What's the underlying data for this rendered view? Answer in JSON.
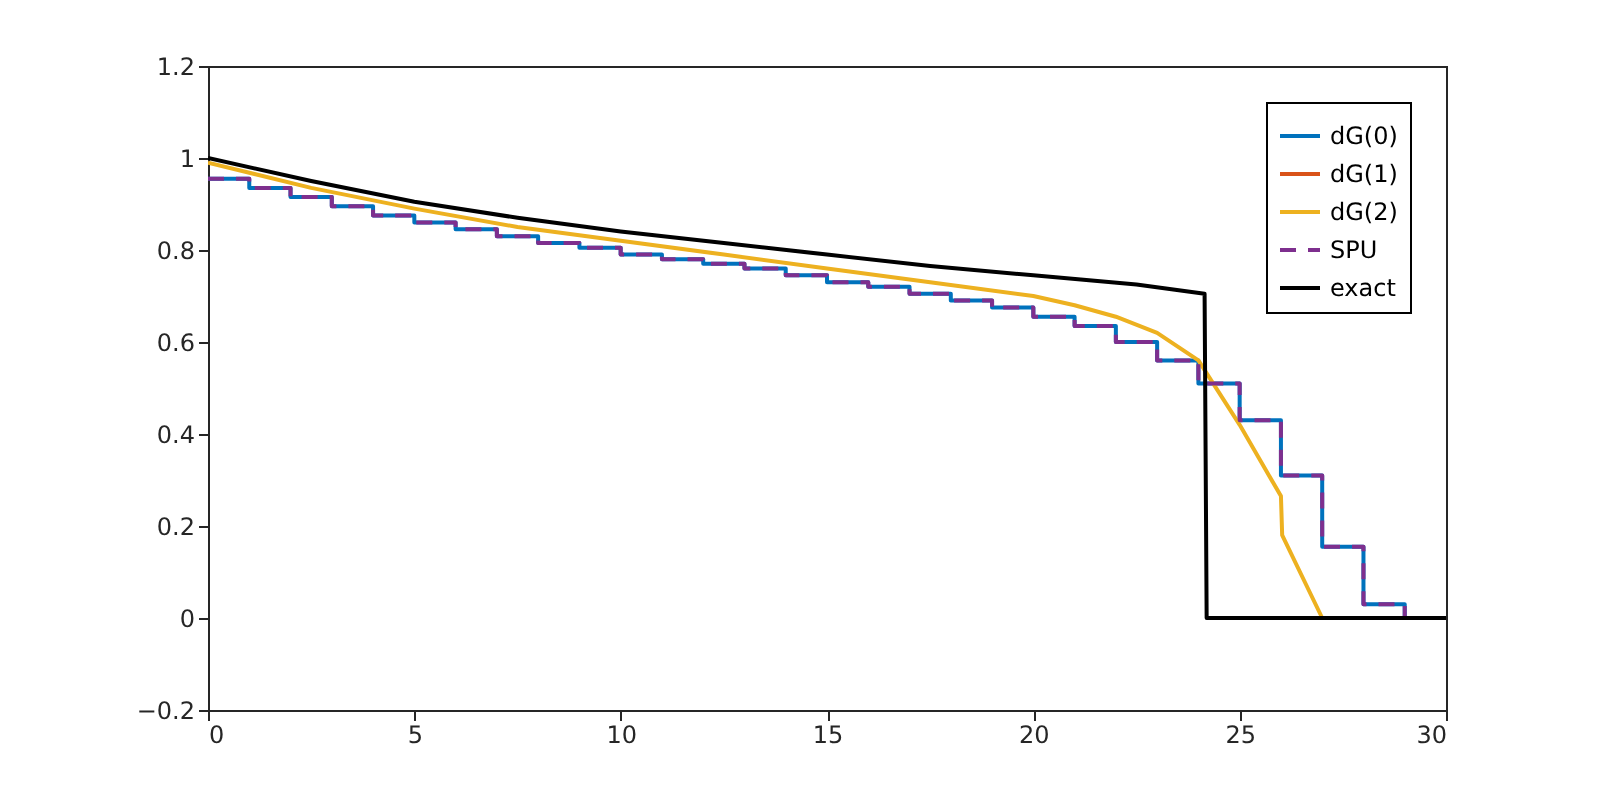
{
  "chart_data": {
    "type": "line",
    "series": [
      {
        "name": "dG(0)",
        "type": "step",
        "color": "#0072bd",
        "x": [
          0,
          1,
          2,
          3,
          4,
          5,
          6,
          7,
          8,
          9,
          10,
          11,
          12,
          13,
          14,
          15,
          16,
          17,
          18,
          19,
          20,
          21,
          22,
          23,
          24,
          25,
          26,
          27,
          28,
          29,
          30
        ],
        "values": [
          0.955,
          0.935,
          0.915,
          0.895,
          0.875,
          0.86,
          0.845,
          0.83,
          0.815,
          0.805,
          0.79,
          0.78,
          0.77,
          0.76,
          0.745,
          0.73,
          0.72,
          0.705,
          0.69,
          0.675,
          0.655,
          0.635,
          0.6,
          0.56,
          0.51,
          0.43,
          0.31,
          0.155,
          0.03,
          0,
          0
        ]
      },
      {
        "name": "dG(1)",
        "color": "#d95319"
      },
      {
        "name": "dG(2)",
        "color": "#edb120",
        "x": [
          0,
          2.5,
          5,
          7.5,
          10,
          12.5,
          15,
          17.5,
          20,
          21,
          22,
          23,
          24,
          25,
          26,
          26.03,
          27,
          30
        ],
        "values": [
          0.99,
          0.935,
          0.89,
          0.85,
          0.82,
          0.79,
          0.76,
          0.73,
          0.7,
          0.68,
          0.655,
          0.62,
          0.56,
          0.42,
          0.265,
          0.18,
          0,
          0
        ]
      },
      {
        "name": "SPU",
        "type": "step",
        "color": "#7e2f8e",
        "line_style": "dashed",
        "x": [
          0,
          1,
          2,
          3,
          4,
          5,
          6,
          7,
          8,
          9,
          10,
          11,
          12,
          13,
          14,
          15,
          16,
          17,
          18,
          19,
          20,
          21,
          22,
          23,
          24,
          25,
          26,
          27,
          28,
          29,
          30
        ],
        "values": [
          0.955,
          0.935,
          0.915,
          0.895,
          0.875,
          0.86,
          0.845,
          0.83,
          0.815,
          0.805,
          0.79,
          0.78,
          0.77,
          0.76,
          0.745,
          0.73,
          0.72,
          0.705,
          0.69,
          0.675,
          0.655,
          0.635,
          0.6,
          0.56,
          0.51,
          0.43,
          0.31,
          0.155,
          0.03,
          0,
          0
        ]
      },
      {
        "name": "exact",
        "color": "#000000",
        "x": [
          0,
          2.5,
          5,
          7.5,
          10,
          12.5,
          15,
          17.5,
          20,
          22.5,
          24.15,
          24.2,
          30
        ],
        "values": [
          1,
          0.95,
          0.905,
          0.87,
          0.84,
          0.815,
          0.79,
          0.765,
          0.745,
          0.725,
          0.705,
          0,
          0
        ]
      }
    ],
    "xlim": [
      0,
      30
    ],
    "xticks": [
      0,
      5,
      10,
      15,
      20,
      25,
      30
    ],
    "ylim": [
      -0.2,
      1.2
    ],
    "yticks": [
      -0.2,
      0,
      0.2,
      0.4,
      0.6,
      0.8,
      1,
      1.2
    ],
    "legend": "top right",
    "grid": false
  }
}
